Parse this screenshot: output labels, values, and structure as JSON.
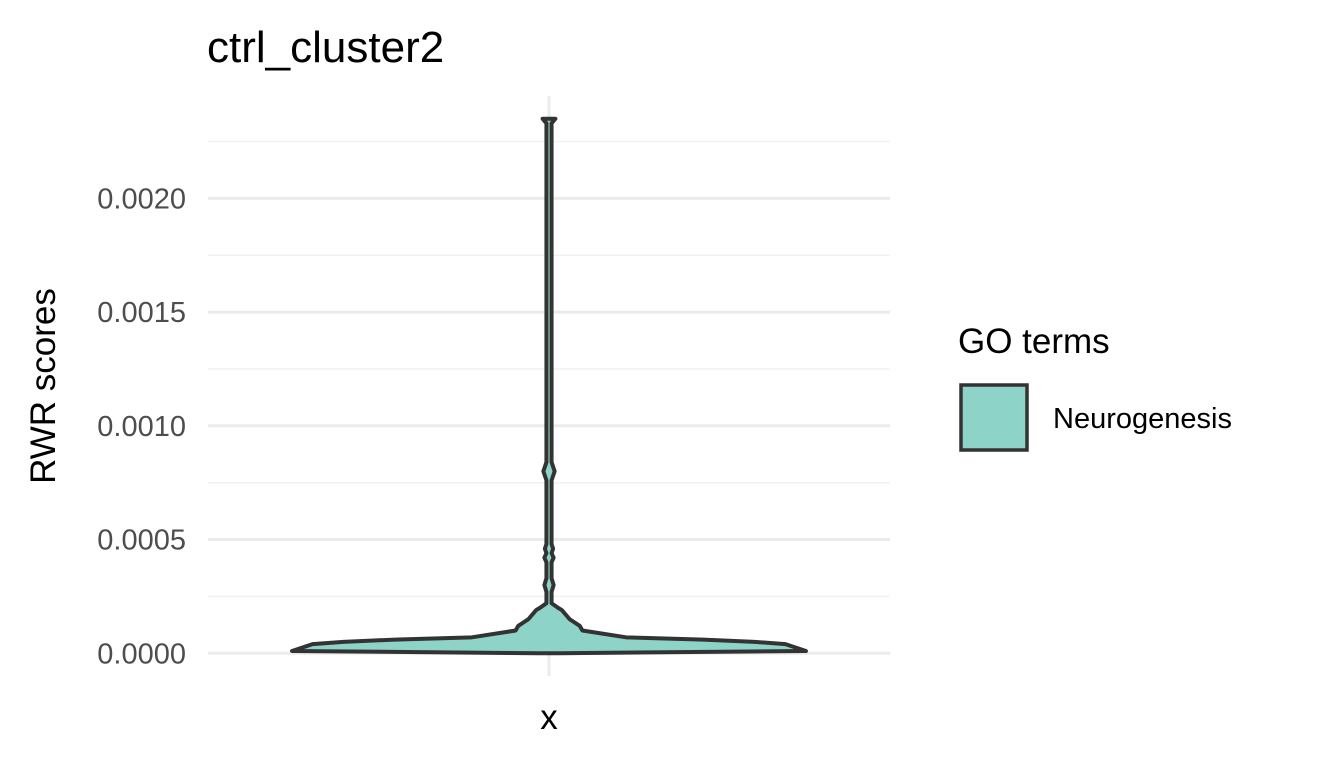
{
  "chart_data": {
    "type": "violin",
    "title": "ctrl_cluster2",
    "xlabel": "",
    "ylabel": "RWR scores",
    "categories": [
      "x"
    ],
    "ylim": [
      -0.0001,
      0.00245
    ],
    "y_ticks": [
      0.0,
      0.0005,
      0.001,
      0.0015,
      0.002
    ],
    "y_tick_labels": [
      "0.0000",
      "0.0005",
      "0.0010",
      "0.0015",
      "0.0020"
    ],
    "grid": true,
    "legend": {
      "title": "GO terms",
      "position": "right",
      "entries": [
        {
          "label": "Neurogenesis",
          "color": "#8dd3c7"
        }
      ]
    },
    "series": [
      {
        "name": "Neurogenesis",
        "category": "x",
        "color": "#8dd3c7",
        "outline_color": "#333333",
        "min": 0.0,
        "max": 0.00235,
        "density_profile": [
          {
            "y": 0.0,
            "width": 0.04
          },
          {
            "y": 1e-05,
            "width": 1.0
          },
          {
            "y": 4e-05,
            "width": 0.92
          },
          {
            "y": 5e-05,
            "width": 0.8
          },
          {
            "y": 6e-05,
            "width": 0.6
          },
          {
            "y": 7e-05,
            "width": 0.3
          },
          {
            "y": 0.0001,
            "width": 0.13
          },
          {
            "y": 0.00012,
            "width": 0.12
          },
          {
            "y": 0.00015,
            "width": 0.08
          },
          {
            "y": 0.00019,
            "width": 0.05
          },
          {
            "y": 0.0002,
            "width": 0.035
          },
          {
            "y": 0.00022,
            "width": 0.01
          },
          {
            "y": 0.00027,
            "width": 0.01
          },
          {
            "y": 0.0003,
            "width": 0.018
          },
          {
            "y": 0.00033,
            "width": 0.01
          },
          {
            "y": 0.0004,
            "width": 0.01
          },
          {
            "y": 0.00042,
            "width": 0.018
          },
          {
            "y": 0.00044,
            "width": 0.01
          },
          {
            "y": 0.00046,
            "width": 0.016
          },
          {
            "y": 0.00048,
            "width": 0.01
          },
          {
            "y": 0.00076,
            "width": 0.01
          },
          {
            "y": 0.0008,
            "width": 0.022
          },
          {
            "y": 0.00084,
            "width": 0.01
          },
          {
            "y": 0.00233,
            "width": 0.01
          },
          {
            "y": 0.00235,
            "width": 0.025
          }
        ]
      }
    ]
  }
}
